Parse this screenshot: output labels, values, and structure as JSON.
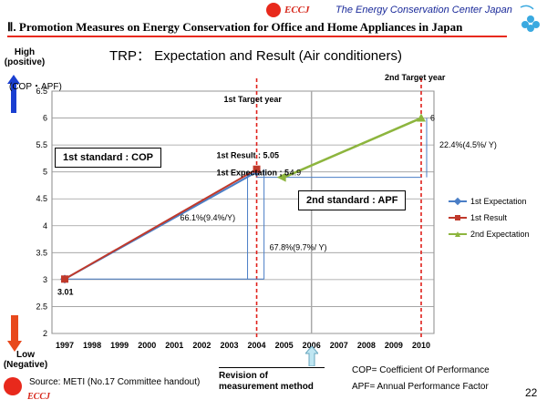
{
  "header": {
    "logo_text": "ECCJ",
    "organization": "The Energy Conservation Center Japan",
    "section_title": "Ⅱ. Promotion Measures on Energy Conservation for Office and Home Appliances in Japan"
  },
  "side": {
    "high_label": "High\n(positive)",
    "low_label": "Low\n(Negative)"
  },
  "chart_data": {
    "type": "line",
    "title": "TRP： Expectation and Result (Air conditioners)",
    "ylabel": "(COP・APF)",
    "ylim": [
      2,
      6.5
    ],
    "yticks": [
      "2",
      "2.5",
      "3",
      "3.5",
      "4",
      "4.5",
      "5",
      "5.5",
      "6",
      "6.5"
    ],
    "x": [
      "1997",
      "1998",
      "1999",
      "2000",
      "2001",
      "2002",
      "2003",
      "2004",
      "2005",
      "2006",
      "2007",
      "2008",
      "2009",
      "2010"
    ],
    "series": [
      {
        "name": "1st Expectation",
        "color": "#4a7ec6",
        "points": [
          [
            "1997",
            3.01
          ],
          [
            "2004",
            5.0
          ]
        ]
      },
      {
        "name": "1st Result",
        "color": "#c0392b",
        "points": [
          [
            "1997",
            3.01
          ],
          [
            "2004",
            5.05
          ]
        ]
      },
      {
        "name": "2nd Expectation",
        "color": "#8db53e",
        "points": [
          [
            "2005",
            4.9
          ],
          [
            "2010",
            6.0
          ]
        ]
      }
    ],
    "annotations": {
      "start_value": "3.01",
      "first_result": "1st Result : 5.05",
      "first_expectation": "1st Expectation ; 5",
      "second_start": "4.9",
      "second_end": "6",
      "pct_first": "66.1%(9.4%/Y)",
      "pct_result": "67.8%(9.7%/ Y)",
      "pct_second": "22.4%(4.5%/ Y)",
      "first_target": "1st Target year",
      "second_target": "2nd Target year",
      "first_standard": "1st standard : COP",
      "second_standard": "2nd standard : APF"
    }
  },
  "footer": {
    "source": "Source: METI (No.17 Committee handout)",
    "revision": "Revision of\nmeasurement method",
    "cop_def": "COP= Coefficient Of Performance",
    "apf_def": "APF= Annual Performance Factor",
    "page_number": "22",
    "footer_logo": "ECCJ"
  }
}
